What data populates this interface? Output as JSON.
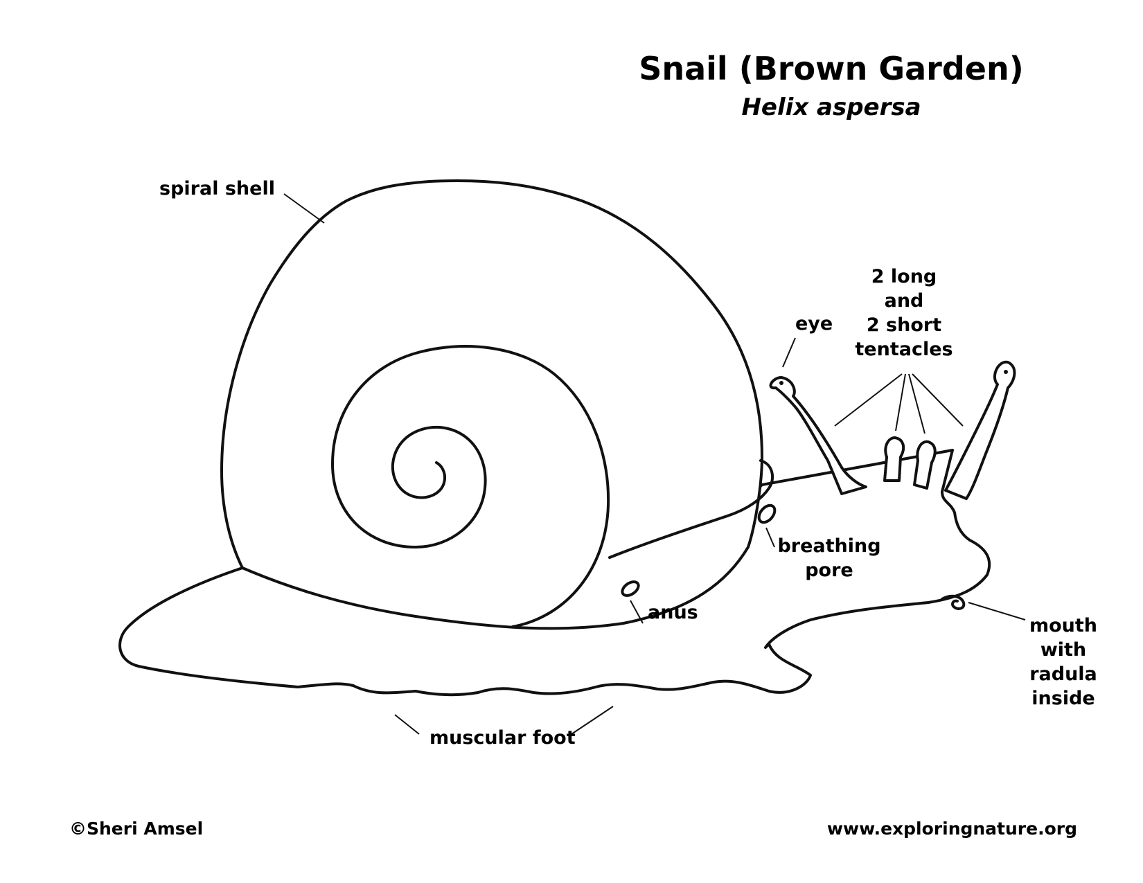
{
  "title": "Snail (Brown Garden)",
  "subtitle": "Helix aspersa",
  "labels": {
    "spiral_shell": "spiral shell",
    "eye": "eye",
    "tentacles": [
      "2 long",
      "and",
      "2 short",
      "tentacles"
    ],
    "breathing_pore": [
      "breathing",
      "pore"
    ],
    "anus": "anus",
    "mouth": [
      "mouth",
      "with",
      "radula",
      "inside"
    ],
    "muscular_foot": "muscular foot"
  },
  "footer": {
    "copyright": "©Sheri Amsel",
    "website": "www.exploringnature.org"
  },
  "colors": {
    "ink": "#111111",
    "paper": "#ffffff"
  }
}
